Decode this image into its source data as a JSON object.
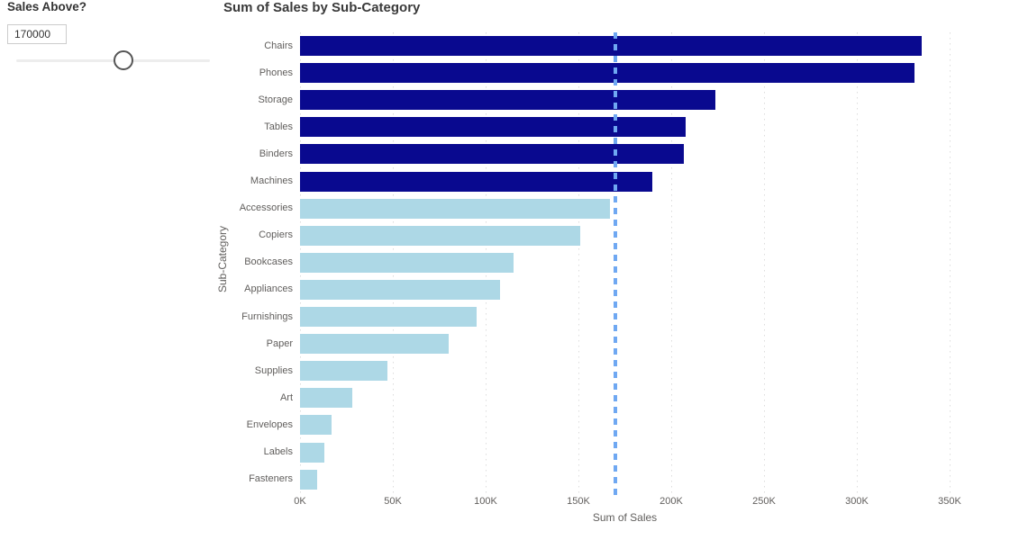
{
  "slicer": {
    "title": "Sales Above?",
    "input_value": "170000",
    "slider_percent": 55.5
  },
  "chart_data": {
    "type": "bar",
    "orientation": "horizontal",
    "title": "Sum of Sales by Sub-Category",
    "xlabel": "Sum of Sales",
    "ylabel": "Sub-Category",
    "categories": [
      "Chairs",
      "Phones",
      "Storage",
      "Tables",
      "Binders",
      "Machines",
      "Accessories",
      "Copiers",
      "Bookcases",
      "Appliances",
      "Furnishings",
      "Paper",
      "Supplies",
      "Art",
      "Envelopes",
      "Labels",
      "Fasteners"
    ],
    "values": [
      335000,
      331000,
      224000,
      208000,
      207000,
      190000,
      167000,
      151000,
      115000,
      108000,
      95000,
      80000,
      47000,
      28000,
      17000,
      13000,
      9000
    ],
    "threshold": 170000,
    "xlim": [
      0,
      366000
    ],
    "x_tick_values": [
      0,
      50000,
      100000,
      150000,
      200000,
      250000,
      300000,
      350000
    ],
    "x_tick_labels": [
      "0K",
      "50K",
      "100K",
      "150K",
      "200K",
      "250K",
      "300K",
      "350K"
    ],
    "grid": true,
    "legend": false,
    "colors": {
      "bar_above_threshold": "#09098f",
      "bar_below_threshold": "#add8e6",
      "threshold_line": "#6fa8f2",
      "gridline": "#dcdcdc",
      "axis_text": "#605e5c",
      "title_text": "#3a3a3a"
    }
  }
}
